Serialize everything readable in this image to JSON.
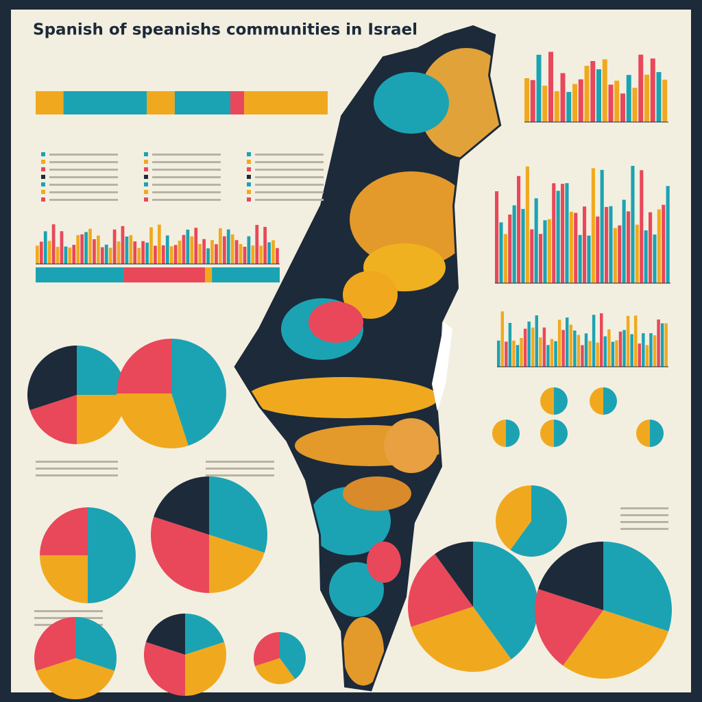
{
  "header": {
    "title": "Spanish of speanishs communities in Israel"
  }
}
